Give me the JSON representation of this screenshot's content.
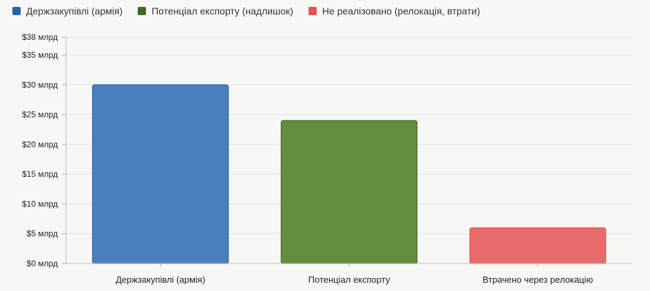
{
  "chart_data": {
    "type": "bar",
    "categories": [
      "Держзакупівлі (армія)",
      "Потенціал експорту",
      "Втрачено через релокацію"
    ],
    "values": [
      30,
      24,
      6
    ],
    "colors": [
      "#4a7fbd",
      "#658d3f",
      "#e86b6b"
    ],
    "legend": [
      {
        "label": "Держзакупівлі (армія)",
        "color": "#2a62a8"
      },
      {
        "label": "Потенціал експорту (надлишок)",
        "color": "#3f6b1f"
      },
      {
        "label": "Не реалізовано (релокація, втрати)",
        "color": "#e0575a"
      }
    ],
    "legend_position": "top-left",
    "y_ticks": [
      {
        "value": 0,
        "label": "$0 млрд"
      },
      {
        "value": 5,
        "label": "$5 млрд"
      },
      {
        "value": 10,
        "label": "$10 млрд"
      },
      {
        "value": 15,
        "label": "$15 млрд"
      },
      {
        "value": 20,
        "label": "$20 млрд"
      },
      {
        "value": 25,
        "label": "$25 млрд"
      },
      {
        "value": 30,
        "label": "$30 млрд"
      },
      {
        "value": 35,
        "label": "$35 млрд"
      },
      {
        "value": 38,
        "label": "$38 млрд"
      }
    ],
    "ylim": [
      0,
      38
    ],
    "grid": true
  }
}
